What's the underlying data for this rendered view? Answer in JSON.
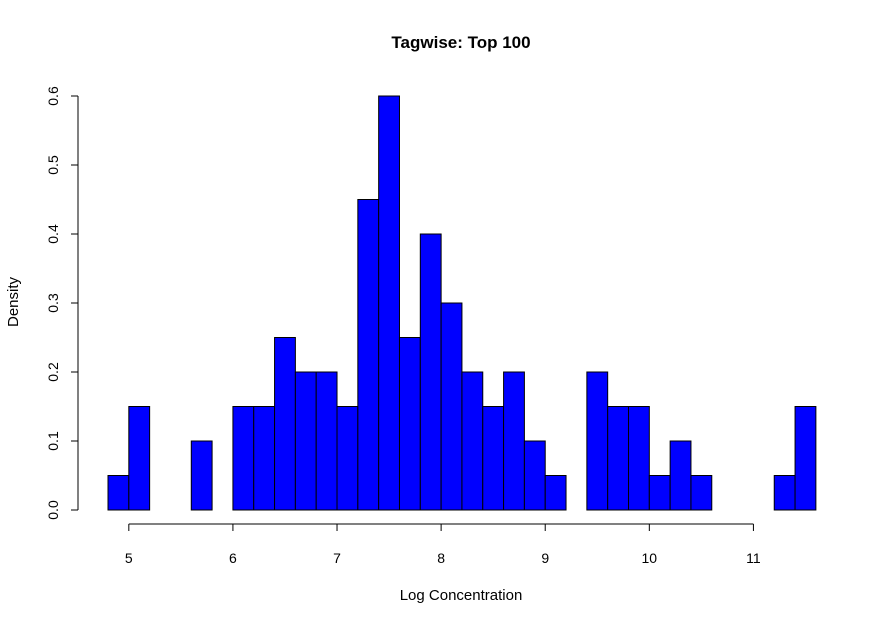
{
  "chart_data": {
    "type": "bar",
    "title": "Tagwise: Top 100",
    "xlabel": "Log Concentration",
    "ylabel": "Density",
    "bar_color": "#0000ff",
    "bin_width": 0.2,
    "bins": [
      {
        "x0": 4.8,
        "x1": 5.0,
        "density": 0.05
      },
      {
        "x0": 5.0,
        "x1": 5.2,
        "density": 0.15
      },
      {
        "x0": 5.2,
        "x1": 5.4,
        "density": 0.0
      },
      {
        "x0": 5.4,
        "x1": 5.6,
        "density": 0.0
      },
      {
        "x0": 5.6,
        "x1": 5.8,
        "density": 0.1
      },
      {
        "x0": 5.8,
        "x1": 6.0,
        "density": 0.0
      },
      {
        "x0": 6.0,
        "x1": 6.2,
        "density": 0.15
      },
      {
        "x0": 6.2,
        "x1": 6.4,
        "density": 0.15
      },
      {
        "x0": 6.4,
        "x1": 6.6,
        "density": 0.25
      },
      {
        "x0": 6.6,
        "x1": 6.8,
        "density": 0.2
      },
      {
        "x0": 6.8,
        "x1": 7.0,
        "density": 0.2
      },
      {
        "x0": 7.0,
        "x1": 7.2,
        "density": 0.15
      },
      {
        "x0": 7.2,
        "x1": 7.4,
        "density": 0.45
      },
      {
        "x0": 7.4,
        "x1": 7.6,
        "density": 0.6
      },
      {
        "x0": 7.6,
        "x1": 7.8,
        "density": 0.25
      },
      {
        "x0": 7.8,
        "x1": 8.0,
        "density": 0.4
      },
      {
        "x0": 8.0,
        "x1": 8.2,
        "density": 0.3
      },
      {
        "x0": 8.2,
        "x1": 8.4,
        "density": 0.2
      },
      {
        "x0": 8.4,
        "x1": 8.6,
        "density": 0.15
      },
      {
        "x0": 8.6,
        "x1": 8.8,
        "density": 0.2
      },
      {
        "x0": 8.8,
        "x1": 9.0,
        "density": 0.1
      },
      {
        "x0": 9.0,
        "x1": 9.2,
        "density": 0.05
      },
      {
        "x0": 9.2,
        "x1": 9.4,
        "density": 0.0
      },
      {
        "x0": 9.4,
        "x1": 9.6,
        "density": 0.2
      },
      {
        "x0": 9.6,
        "x1": 9.8,
        "density": 0.15
      },
      {
        "x0": 9.8,
        "x1": 10.0,
        "density": 0.15
      },
      {
        "x0": 10.0,
        "x1": 10.2,
        "density": 0.05
      },
      {
        "x0": 10.2,
        "x1": 10.4,
        "density": 0.1
      },
      {
        "x0": 10.4,
        "x1": 10.6,
        "density": 0.05
      },
      {
        "x0": 10.6,
        "x1": 10.8,
        "density": 0.0
      },
      {
        "x0": 10.8,
        "x1": 11.0,
        "density": 0.0
      },
      {
        "x0": 11.0,
        "x1": 11.2,
        "density": 0.0
      },
      {
        "x0": 11.2,
        "x1": 11.4,
        "density": 0.05
      },
      {
        "x0": 11.4,
        "x1": 11.6,
        "density": 0.15
      }
    ],
    "xlim": [
      4.8,
      11.6
    ],
    "ylim": [
      0,
      0.6
    ],
    "x_ticks": [
      5,
      6,
      7,
      8,
      9,
      10,
      11
    ],
    "x_tick_labels": [
      "5",
      "6",
      "7",
      "8",
      "9",
      "10",
      "11"
    ],
    "y_ticks": [
      0.0,
      0.1,
      0.2,
      0.3,
      0.4,
      0.5,
      0.6
    ],
    "y_tick_labels": [
      "0.0",
      "0.1",
      "0.2",
      "0.3",
      "0.4",
      "0.5",
      "0.6"
    ],
    "grid": false,
    "legend": "none"
  }
}
